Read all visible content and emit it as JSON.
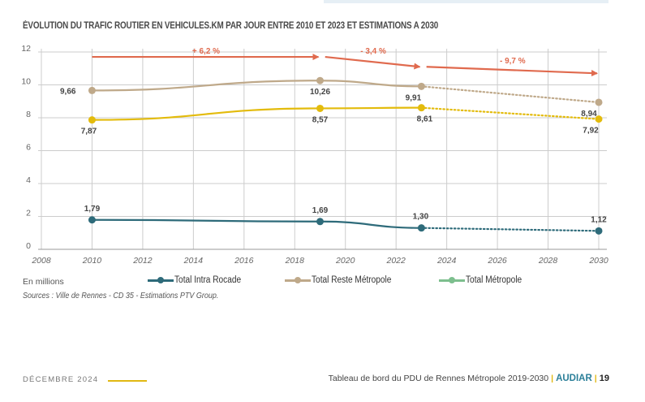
{
  "page": {
    "title": "ÉVOLUTION DU TRAFIC ROUTIER EN VEHICULES.KM PAR JOUR ENTRE 2010 ET 2023 ET ESTIMATIONS A 2030",
    "unit_note": "En millions",
    "sources": "Sources : Ville de Rennes - CD 35 - Estimations PTV Group.",
    "footer": {
      "date": "DÉCEMBRE 2024",
      "publication": "Tableau de bord du PDU de Rennes Métropole 2019-2030",
      "brand": "AUDIAR",
      "page_number": "19",
      "separator": "|"
    }
  },
  "colors": {
    "intra_rocade": "#2e6b7a",
    "reste_metropole": "#bfa98a",
    "metropole_line": "#e3bb0c",
    "metropole_legend": "#7dbf8e",
    "annotation": "#e06a4e",
    "grid": "#cccccc",
    "axis_text": "#666666",
    "label_text": "#444444",
    "brand": "#2b7f99",
    "accent": "#e1b812"
  },
  "chart_data": {
    "type": "line",
    "title": "ÉVOLUTION DU TRAFIC ROUTIER EN VEHICULES.KM PAR JOUR ENTRE 2010 ET 2023 ET ESTIMATIONS A 2030",
    "xlabel": "",
    "ylabel": "En millions",
    "xlim": [
      2008,
      2030
    ],
    "ylim": [
      0,
      12
    ],
    "x_ticks": [
      "2008",
      "2010",
      "2012",
      "2014",
      "2016",
      "2018",
      "2020",
      "2022",
      "2024",
      "2026",
      "2028",
      "2030"
    ],
    "y_ticks": [
      "0",
      "2",
      "4",
      "6",
      "8",
      "10",
      "12"
    ],
    "grid": true,
    "legend_position": "bottom",
    "series": [
      {
        "name": "Total Intra Rocade",
        "color_key": "intra_rocade",
        "x": [
          2010,
          2019,
          2023,
          2030
        ],
        "values": [
          1.79,
          1.69,
          1.3,
          1.12
        ],
        "labels": [
          "1,79",
          "1,69",
          "1,30",
          "1,12"
        ],
        "estimated_from_index": 2
      },
      {
        "name": "Total Reste Métropole",
        "color_key": "reste_metropole",
        "x": [
          2010,
          2019,
          2023,
          2030
        ],
        "values": [
          9.66,
          10.26,
          9.91,
          8.94
        ],
        "labels": [
          "9,66",
          "10,26",
          "9,91",
          "8,94"
        ],
        "estimated_from_index": 2
      },
      {
        "name": "Total Métropole",
        "color_key": "metropole_line",
        "legend_color_key": "metropole_legend",
        "x": [
          2010,
          2019,
          2023,
          2030
        ],
        "values": [
          7.87,
          8.57,
          8.61,
          7.92
        ],
        "labels": [
          "7,87",
          "8,57",
          "8,61",
          "7,92"
        ],
        "estimated_from_index": 2
      }
    ],
    "annotations": [
      {
        "text": "+ 6,2 %",
        "from": [
          2010,
          11.7
        ],
        "to": [
          2019,
          11.7
        ]
      },
      {
        "text": "- 3,4 %",
        "from": [
          2019.2,
          11.7
        ],
        "to": [
          2023,
          11.1
        ]
      },
      {
        "text": "- 9,7 %",
        "from": [
          2023.2,
          11.1
        ],
        "to": [
          2030,
          10.7
        ]
      }
    ]
  }
}
